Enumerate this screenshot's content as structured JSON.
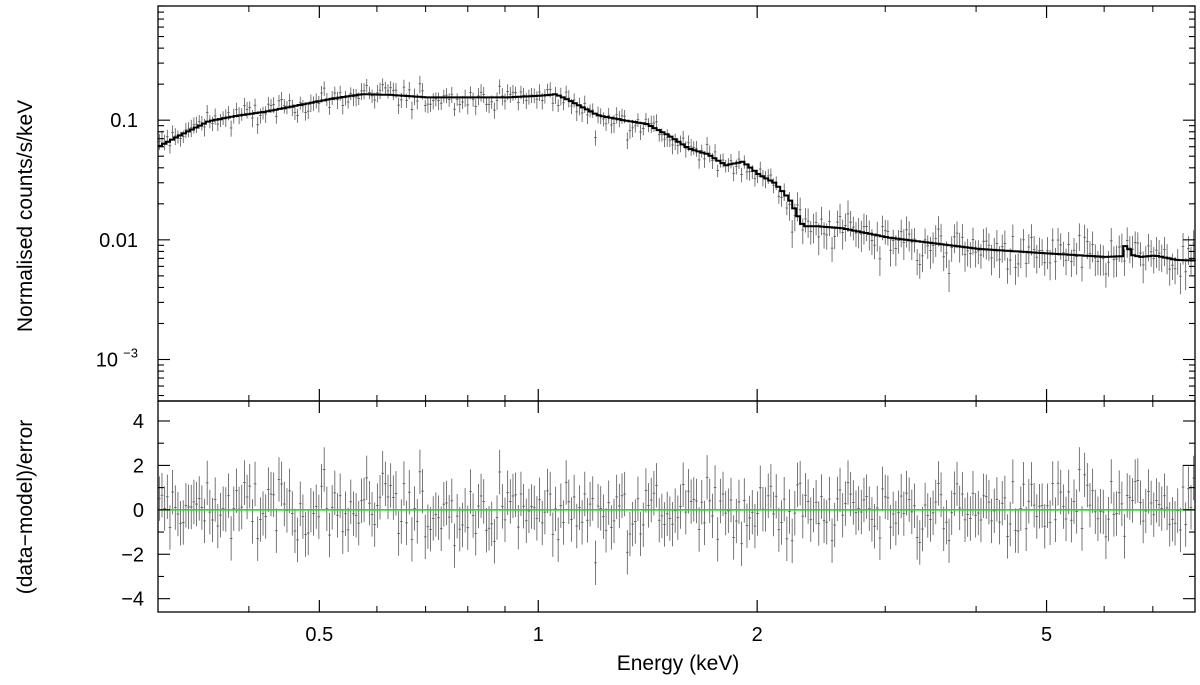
{
  "chart_data": [
    {
      "type": "scatter",
      "panel": "spectrum",
      "ylabel": "Normalised counts/s/keV",
      "xlabel": "",
      "x_scale": "log",
      "y_scale": "log",
      "xlim": [
        0.3,
        8.0
      ],
      "ylim": [
        0.00045,
        0.9
      ],
      "y_ticks": [
        {
          "value": 0.1,
          "label": "0.1"
        },
        {
          "value": 0.01,
          "label": "0.01"
        },
        {
          "value": 0.001,
          "label": "10",
          "exponent": "−3"
        }
      ],
      "model_curve": {
        "x": [
          0.3,
          0.32,
          0.35,
          0.38,
          0.42,
          0.47,
          0.52,
          0.57,
          0.62,
          0.7,
          0.8,
          0.9,
          1.0,
          1.05,
          1.1,
          1.2,
          1.3,
          1.4,
          1.5,
          1.6,
          1.7,
          1.8,
          1.9,
          2.0,
          2.1,
          2.2,
          2.3,
          2.4,
          2.6,
          3.0,
          3.5,
          4.0,
          5.0,
          6.0,
          6.3,
          6.4,
          6.5,
          6.7,
          7.0,
          7.5,
          8.0
        ],
        "y": [
          0.061,
          0.075,
          0.098,
          0.108,
          0.118,
          0.135,
          0.152,
          0.165,
          0.163,
          0.155,
          0.155,
          0.155,
          0.16,
          0.165,
          0.145,
          0.11,
          0.1,
          0.093,
          0.075,
          0.058,
          0.052,
          0.042,
          0.045,
          0.035,
          0.03,
          0.022,
          0.013,
          0.013,
          0.0125,
          0.0105,
          0.0093,
          0.0084,
          0.0077,
          0.0072,
          0.0073,
          0.0095,
          0.0075,
          0.0072,
          0.0074,
          0.0068,
          0.0067
        ]
      },
      "data_points": "approximately 390 binned spectral points with vertical error bars scattered about the model curve",
      "colors": {
        "model": "#000000",
        "data": "#555555",
        "axes": "#000000"
      }
    },
    {
      "type": "scatter",
      "panel": "residuals",
      "ylabel": "(data−model)/error",
      "xlabel": "Energy (keV)",
      "x_scale": "log",
      "xlim": [
        0.3,
        8.0
      ],
      "ylim": [
        -4.6,
        4.9
      ],
      "y_ticks": [
        {
          "value": 4,
          "label": "4"
        },
        {
          "value": 2,
          "label": "2"
        },
        {
          "value": 0,
          "label": "0"
        },
        {
          "value": -2,
          "label": "−2"
        },
        {
          "value": -4,
          "label": "−4"
        }
      ],
      "x_ticks": [
        {
          "value": 0.5,
          "label": "0.5"
        },
        {
          "value": 1,
          "label": "1"
        },
        {
          "value": 2,
          "label": "2"
        },
        {
          "value": 5,
          "label": "5"
        }
      ],
      "reference_line": {
        "y": 0,
        "color": "#22dd22"
      },
      "data_points": "residuals scattered roughly between −4 and +3 with error bars of about ±1",
      "colors": {
        "data": "#555555",
        "axes": "#000000"
      }
    }
  ]
}
